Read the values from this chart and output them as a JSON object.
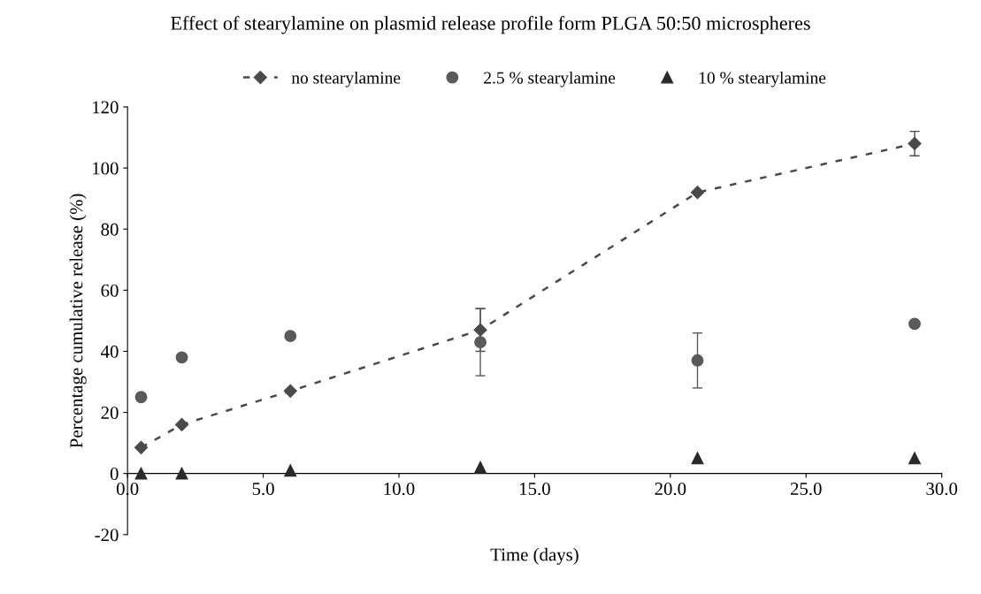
{
  "chart_data": {
    "type": "line",
    "title": "Effect of stearylamine on plasmid release profile form PLGA 50:50 microspheres",
    "xlabel": "Time (days)",
    "ylabel": "Percentage cumulative release (%)",
    "x": [
      0.5,
      2,
      6,
      13,
      21,
      29
    ],
    "series": [
      {
        "name": "no stearylamine",
        "color": "#4a4a4a",
        "marker": "diamond",
        "line_style": "dashed",
        "values": [
          8.5,
          16,
          27,
          47,
          92,
          108
        ],
        "errors": [
          null,
          null,
          null,
          7,
          null,
          4
        ]
      },
      {
        "name": "2.5 % stearylamine",
        "type": "scatter",
        "color": "#5a5a5a",
        "marker": "circle",
        "values": [
          25,
          38,
          45,
          43,
          37,
          49
        ],
        "errors": [
          null,
          null,
          null,
          11,
          9,
          null
        ]
      },
      {
        "name": "10 % stearylamine",
        "type": "scatter",
        "color": "#2a2a2a",
        "marker": "triangle",
        "values": [
          0,
          0,
          1,
          2,
          5,
          5
        ]
      }
    ],
    "xlim": [
      0,
      30
    ],
    "xticks": [
      {
        "value": 0,
        "label": "0.0"
      },
      {
        "value": 5,
        "label": "5.0"
      },
      {
        "value": 10,
        "label": "10.0"
      },
      {
        "value": 15,
        "label": "15.0"
      },
      {
        "value": 20,
        "label": "20.0"
      },
      {
        "value": 25,
        "label": "25.0"
      },
      {
        "value": 30,
        "label": "30.0"
      }
    ],
    "ylim": [
      -20,
      120
    ],
    "yticks": [
      -20,
      0,
      20,
      40,
      60,
      80,
      100,
      120
    ],
    "legend": "top"
  }
}
